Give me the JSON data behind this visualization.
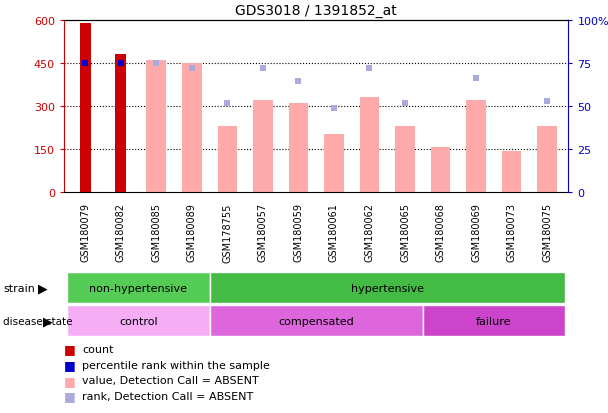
{
  "title": "GDS3018 / 1391852_at",
  "samples": [
    "GSM180079",
    "GSM180082",
    "GSM180085",
    "GSM180089",
    "GSM178755",
    "GSM180057",
    "GSM180059",
    "GSM180061",
    "GSM180062",
    "GSM180065",
    "GSM180068",
    "GSM180069",
    "GSM180073",
    "GSM180075"
  ],
  "count_values": [
    590,
    480,
    0,
    0,
    0,
    0,
    0,
    0,
    0,
    0,
    0,
    0,
    0,
    0
  ],
  "percentile_rank": [
    75,
    75,
    null,
    null,
    null,
    null,
    null,
    null,
    null,
    null,
    null,
    null,
    null,
    null
  ],
  "value_absent": [
    null,
    null,
    460,
    450,
    230,
    320,
    310,
    200,
    330,
    230,
    155,
    320,
    140,
    230
  ],
  "rank_absent": [
    null,
    null,
    450,
    430,
    310,
    430,
    385,
    290,
    430,
    310,
    null,
    395,
    null,
    315
  ],
  "ylim_left": [
    0,
    600
  ],
  "ylim_right": [
    0,
    100
  ],
  "yticks_left": [
    0,
    150,
    300,
    450,
    600
  ],
  "yticks_right": [
    0,
    25,
    50,
    75,
    100
  ],
  "strain_groups": [
    {
      "label": "non-hypertensive",
      "start": 0,
      "end": 4,
      "color": "#55cc55"
    },
    {
      "label": "hypertensive",
      "start": 4,
      "end": 14,
      "color": "#44bb44"
    }
  ],
  "disease_groups": [
    {
      "label": "control",
      "start": 0,
      "end": 4,
      "color": "#f5aef5"
    },
    {
      "label": "compensated",
      "start": 4,
      "end": 10,
      "color": "#dd66dd"
    },
    {
      "label": "failure",
      "start": 10,
      "end": 14,
      "color": "#cc44cc"
    }
  ],
  "color_count": "#cc0000",
  "color_value_absent": "#ffaaaa",
  "color_rank_absent": "#aaaadd",
  "color_percentile": "#0000cc",
  "background_color": "#ffffff",
  "xlabel_bg": "#cccccc",
  "legend_items": [
    {
      "color": "#cc0000",
      "label": "count"
    },
    {
      "color": "#0000cc",
      "label": "percentile rank within the sample"
    },
    {
      "color": "#ffaaaa",
      "label": "value, Detection Call = ABSENT"
    },
    {
      "color": "#aaaadd",
      "label": "rank, Detection Call = ABSENT"
    }
  ]
}
